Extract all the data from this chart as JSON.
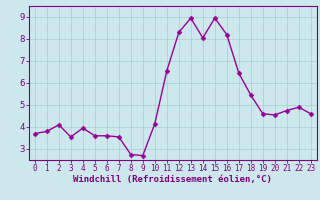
{
  "x": [
    0,
    1,
    2,
    3,
    4,
    5,
    6,
    7,
    8,
    9,
    10,
    11,
    12,
    13,
    14,
    15,
    16,
    17,
    18,
    19,
    20,
    21,
    22,
    23
  ],
  "y": [
    3.7,
    3.8,
    4.1,
    3.55,
    3.95,
    3.6,
    3.6,
    3.55,
    2.75,
    2.7,
    4.15,
    6.55,
    8.3,
    8.95,
    8.05,
    8.95,
    8.2,
    6.45,
    5.45,
    4.6,
    4.55,
    4.75,
    4.9,
    4.6
  ],
  "line_color": "#990099",
  "marker_color": "#990099",
  "marker": "D",
  "marker_size": 2.5,
  "line_width": 1.0,
  "xlabel": "Windchill (Refroidissement éolien,°C)",
  "xlim": [
    -0.5,
    23.5
  ],
  "ylim": [
    2.5,
    9.5
  ],
  "yticks": [
    3,
    4,
    5,
    6,
    7,
    8,
    9
  ],
  "xticks": [
    0,
    1,
    2,
    3,
    4,
    5,
    6,
    7,
    8,
    9,
    10,
    11,
    12,
    13,
    14,
    15,
    16,
    17,
    18,
    19,
    20,
    21,
    22,
    23
  ],
  "bg_color": "#cce8ec",
  "grid_color": "#aacccc",
  "axis_color": "#800080",
  "tick_color": "#800080",
  "xlabel_color": "#800080",
  "xlabel_fontsize": 6.5,
  "tick_fontsize": 6.5,
  "xtick_fontsize": 5.5
}
